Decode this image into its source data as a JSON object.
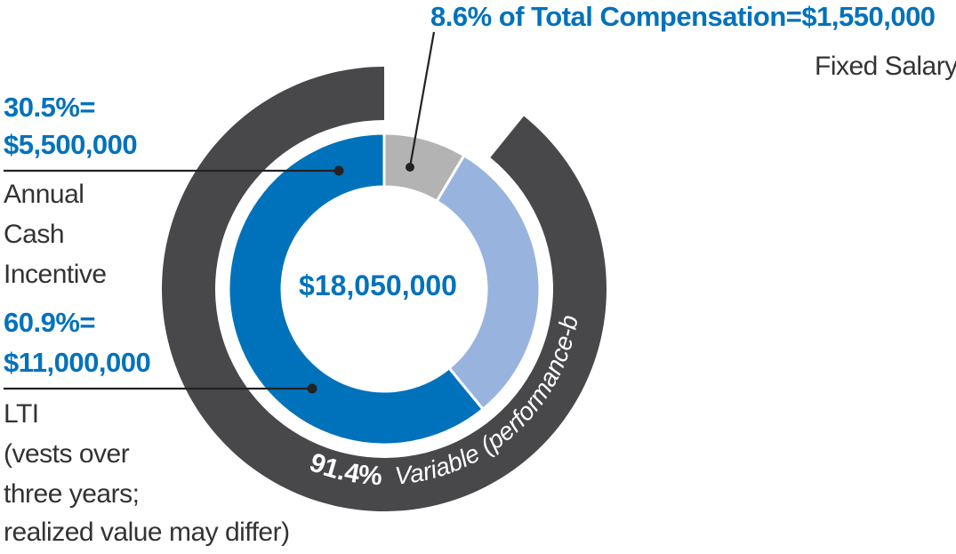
{
  "chart_data": {
    "type": "pie",
    "total": "$18,050,000",
    "slices": [
      {
        "label": "Fixed Salary",
        "percent_text": "8.6% of Total Compensation=$1,550,000",
        "value": 1550000,
        "color": "#b3b3b3"
      },
      {
        "label": "Annual Cash Incentive",
        "percent_text": "30.5%=",
        "amount_text": "$5,500,000",
        "value": 5500000,
        "color": "#99b3df"
      },
      {
        "label": "LTI",
        "percent_text": "60.9%=",
        "amount_text": "$11,000,000",
        "value": 11000000,
        "color": "#0072bc"
      }
    ],
    "outer_ring": {
      "percent": "91.4%",
      "label": "Variable (performance-based)",
      "value": 16500000,
      "color": "#48484b"
    }
  },
  "labels": {
    "fixed_heading": "8.6% of Total Compensation=$1,550,000",
    "fixed_name": "Fixed Salary",
    "aci_percent": "30.5%=",
    "aci_amount": "$5,500,000",
    "aci_line1": "Annual",
    "aci_line2": "Cash",
    "aci_line3": "Incentive",
    "lti_percent": "60.9%=",
    "lti_amount": "$11,000,000",
    "lti_line1": "LTI",
    "lti_line2": "(vests over",
    "lti_line3": "three years;",
    "lti_line4": "realized value may differ)"
  },
  "colors": {
    "accent_blue": "#0072bc",
    "text_dark": "#333333",
    "leader": "#222222"
  }
}
